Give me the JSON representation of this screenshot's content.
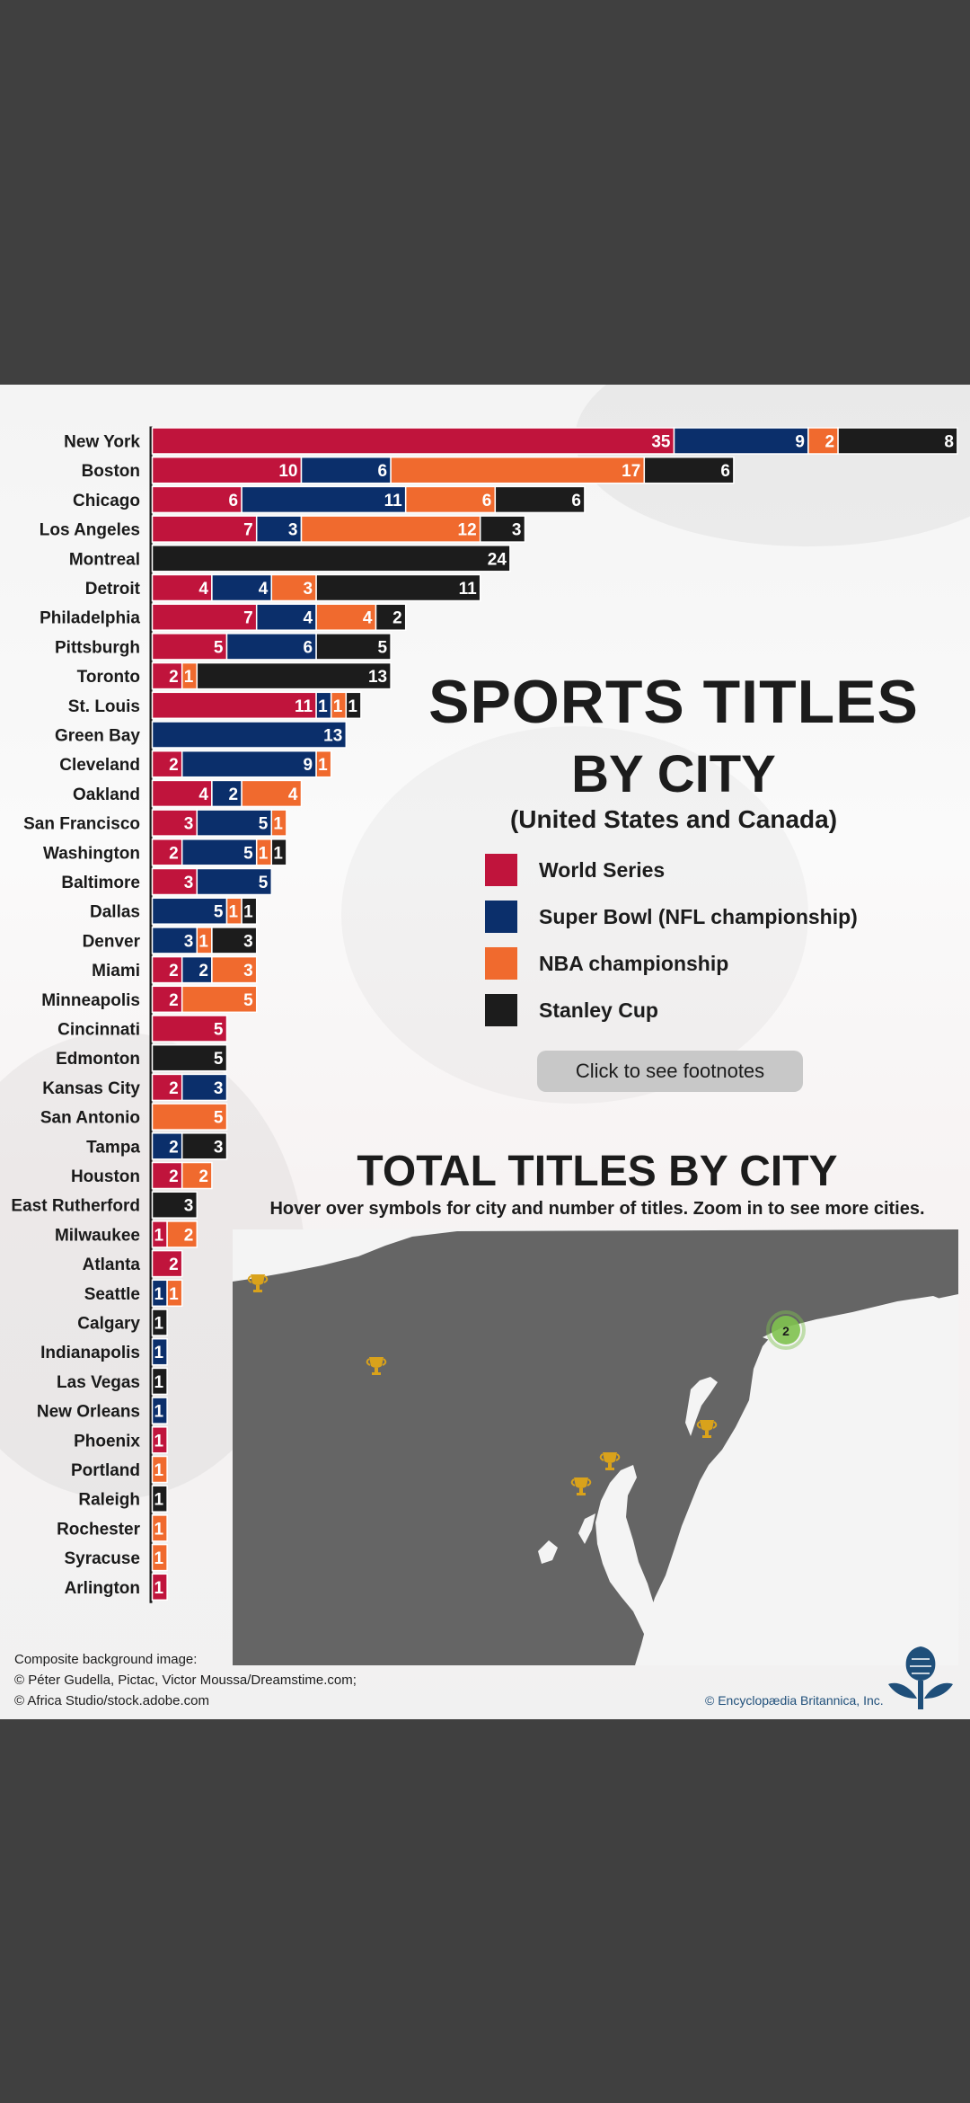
{
  "colors": {
    "world_series": "#c0143c",
    "super_bowl": "#0b2f6b",
    "nba": "#f06a2e",
    "stanley_cup": "#1c1c1c",
    "map_land": "#656565",
    "trophy": "#d9a21b",
    "cluster": "#7fc24f",
    "page_bg": "#404040"
  },
  "chart_data": {
    "type": "bar",
    "orientation": "horizontal",
    "stacked": true,
    "categories": [
      "New York",
      "Boston",
      "Chicago",
      "Los Angeles",
      "Montreal",
      "Detroit",
      "Philadelphia",
      "Pittsburgh",
      "Toronto",
      "St. Louis",
      "Green Bay",
      "Cleveland",
      "Oakland",
      "San Francisco",
      "Washington",
      "Baltimore",
      "Dallas",
      "Denver",
      "Miami",
      "Minneapolis",
      "Cincinnati",
      "Edmonton",
      "Kansas City",
      "San Antonio",
      "Tampa",
      "Houston",
      "East Rutherford",
      "Milwaukee",
      "Atlanta",
      "Seattle",
      "Calgary",
      "Indianapolis",
      "Las Vegas",
      "New Orleans",
      "Phoenix",
      "Portland",
      "Raleigh",
      "Rochester",
      "Syracuse",
      "Arlington"
    ],
    "series": [
      {
        "name": "World Series",
        "color": "#c0143c",
        "values": [
          35,
          10,
          6,
          7,
          0,
          4,
          7,
          5,
          2,
          11,
          0,
          2,
          4,
          3,
          2,
          3,
          0,
          0,
          2,
          2,
          5,
          0,
          2,
          0,
          0,
          2,
          0,
          1,
          2,
          0,
          0,
          0,
          0,
          0,
          1,
          0,
          0,
          0,
          0,
          1
        ]
      },
      {
        "name": "Super Bowl (NFL championship)",
        "color": "#0b2f6b",
        "values": [
          9,
          6,
          11,
          3,
          0,
          4,
          4,
          6,
          0,
          1,
          13,
          9,
          2,
          5,
          5,
          5,
          5,
          3,
          2,
          0,
          0,
          0,
          3,
          0,
          2,
          0,
          0,
          0,
          0,
          1,
          0,
          1,
          0,
          1,
          0,
          0,
          0,
          0,
          0,
          0
        ]
      },
      {
        "name": "NBA championship",
        "color": "#f06a2e",
        "values": [
          2,
          17,
          6,
          12,
          0,
          3,
          4,
          0,
          1,
          1,
          0,
          1,
          4,
          1,
          1,
          0,
          1,
          1,
          3,
          5,
          0,
          0,
          0,
          5,
          0,
          2,
          0,
          2,
          0,
          1,
          0,
          0,
          0,
          0,
          0,
          1,
          0,
          1,
          1,
          0
        ]
      },
      {
        "name": "Stanley Cup",
        "color": "#1c1c1c",
        "values": [
          8,
          6,
          6,
          3,
          24,
          11,
          2,
          5,
          13,
          1,
          0,
          0,
          0,
          0,
          1,
          0,
          1,
          3,
          0,
          0,
          0,
          5,
          0,
          0,
          3,
          0,
          3,
          0,
          0,
          0,
          1,
          0,
          1,
          0,
          0,
          0,
          1,
          0,
          0,
          0
        ]
      }
    ],
    "title": "SPORTS TITLES BY CITY",
    "subtitle": "(United States and Canada)",
    "legend_position": "right"
  },
  "header": {
    "title_line1": "SPORTS TITLES",
    "title_line2": "BY CITY",
    "subtitle": "(United States and Canada)"
  },
  "legend": [
    {
      "label": "World Series",
      "color": "#c0143c"
    },
    {
      "label": "Super Bowl (NFL championship)",
      "color": "#0b2f6b"
    },
    {
      "label": "NBA championship",
      "color": "#f06a2e"
    },
    {
      "label": "Stanley Cup",
      "color": "#1c1c1c"
    }
  ],
  "footnotes_button": "Click to see footnotes",
  "map": {
    "title": "TOTAL TITLES BY CITY",
    "subtitle": "Hover over symbols for city and number of titles. Zoom in to see more cities.",
    "cluster_count": "2",
    "markers": [
      "trophy-icon",
      "trophy-icon",
      "trophy-icon",
      "trophy-icon",
      "trophy-icon"
    ]
  },
  "credits": {
    "line1": "Composite background image:",
    "line2": "© Péter Gudella, Pictac, Victor Moussa/Dreamstime.com;",
    "line3": "© Africa Studio/stock.adobe.com",
    "copyright": "© Encyclopædia Britannica, Inc."
  }
}
